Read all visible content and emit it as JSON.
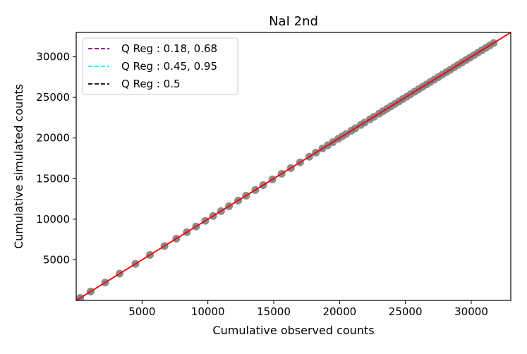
{
  "chart_data": {
    "type": "scatter",
    "title": "NaI 2nd",
    "xlabel": "Cumulative observed counts",
    "ylabel": "Cumulative simulated counts",
    "xlim": [
      0,
      33000
    ],
    "ylim": [
      0,
      33000
    ],
    "xticks": [
      5000,
      10000,
      15000,
      20000,
      25000,
      30000
    ],
    "yticks": [
      5000,
      10000,
      15000,
      20000,
      25000,
      30000
    ],
    "grid": false,
    "legend_position": "top-left",
    "colors": {
      "points": "#7f7f7f",
      "identity_line": "#ff0000",
      "q_low_high_1": "#800080",
      "q_low_high_2": "#00ffff",
      "q_median": "#000000"
    },
    "series": [
      {
        "name": "points",
        "x": [
          300,
          1100,
          2200,
          3300,
          4500,
          5600,
          6700,
          7600,
          8400,
          9100,
          9800,
          10400,
          11000,
          11600,
          12300,
          12900,
          13600,
          14200,
          14900,
          15600,
          16300,
          17000,
          17700,
          18200,
          18700,
          19100,
          19500,
          19900,
          20200,
          20500,
          20900,
          21200,
          21600,
          21900,
          22300,
          22600,
          23000,
          23300,
          23600,
          23900,
          24200,
          24500,
          24800,
          25100,
          25400,
          25700,
          26000,
          26300,
          26600,
          26900,
          27200,
          27500,
          27800,
          28100,
          28400,
          28700,
          29000,
          29300,
          29600,
          29900,
          30200,
          30500,
          30800,
          31100,
          31400,
          31700
        ],
        "y": [
          300,
          1100,
          2200,
          3300,
          4500,
          5600,
          6700,
          7600,
          8400,
          9100,
          9800,
          10400,
          11000,
          11600,
          12300,
          12900,
          13600,
          14200,
          14900,
          15600,
          16300,
          17000,
          17700,
          18200,
          18700,
          19100,
          19500,
          19900,
          20200,
          20500,
          20900,
          21200,
          21600,
          21900,
          22300,
          22600,
          23000,
          23300,
          23600,
          23900,
          24200,
          24500,
          24800,
          25100,
          25400,
          25700,
          26000,
          26300,
          26600,
          26900,
          27200,
          27500,
          27800,
          28100,
          28400,
          28700,
          29000,
          29300,
          29600,
          29900,
          30200,
          30500,
          30800,
          31100,
          31400,
          31700
        ]
      }
    ],
    "lines": [
      {
        "name": "Q Reg : 0.18, 0.68",
        "style": "dashed",
        "color": "#800080",
        "x": [
          0,
          33000
        ],
        "y": [
          0,
          33000
        ]
      },
      {
        "name": "Q Reg : 0.45, 0.95",
        "style": "dashed",
        "color": "#00ffff",
        "x": [
          0,
          33000
        ],
        "y": [
          0,
          33000
        ]
      },
      {
        "name": "Q Reg : 0.5",
        "style": "dashed",
        "color": "#000000",
        "x": [
          0,
          33000
        ],
        "y": [
          0,
          33000
        ]
      },
      {
        "name": "",
        "style": "solid",
        "color": "#ff0000",
        "x": [
          0,
          33000
        ],
        "y": [
          0,
          33000
        ]
      }
    ],
    "legend": [
      "Q Reg : 0.18, 0.68",
      "Q Reg : 0.45, 0.95",
      "Q Reg : 0.5"
    ]
  }
}
